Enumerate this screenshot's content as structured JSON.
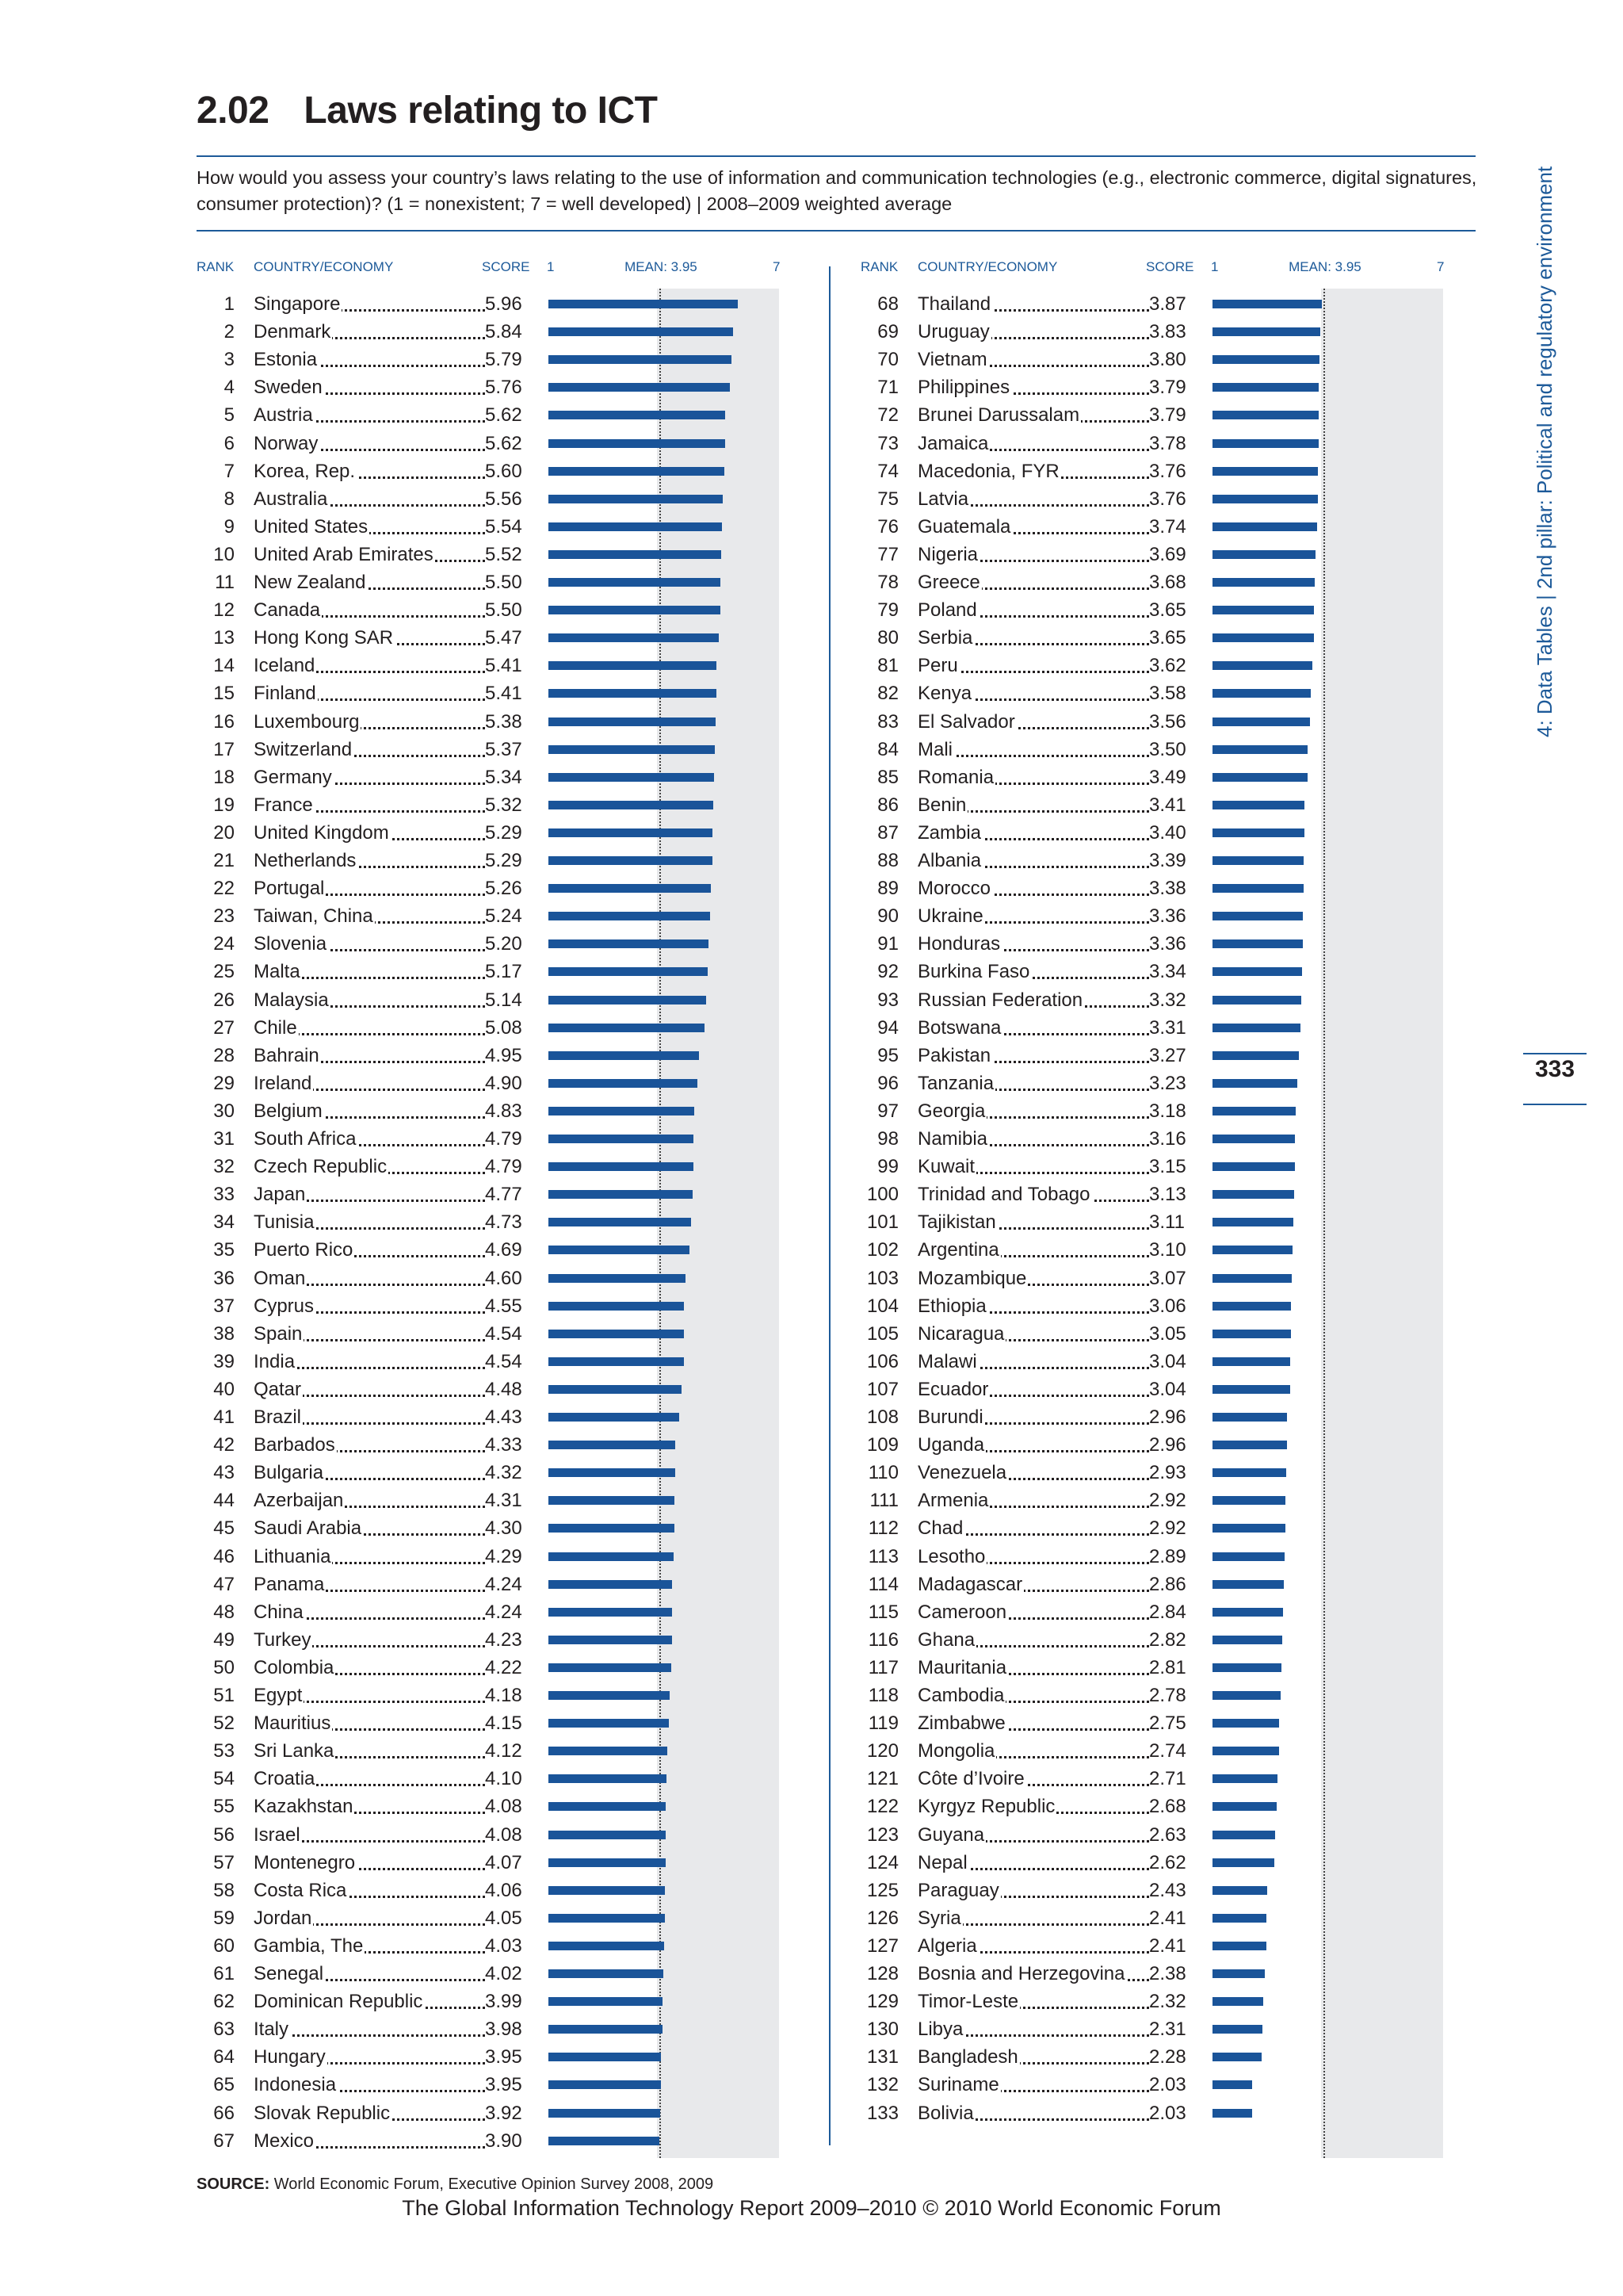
{
  "header": {
    "number": "2.02",
    "title": "Laws relating to ICT",
    "question": "How would you assess your country’s laws relating to the use of information and communication technologies (e.g., electronic commerce, digital signatures, consumer protection)? (1 = nonexistent; 7 = well developed)  |  2008–2009 weighted average"
  },
  "columns": {
    "rank": "RANK",
    "country": "COUNTRY/ECONOMY",
    "score": "SCORE",
    "scale_min": "1",
    "mean_label": "MEAN: 3.95",
    "scale_max": "7"
  },
  "side_text": "4: Data Tables  |  2nd pillar: Political and regulatory environment",
  "page_number": "333",
  "source": {
    "label": "SOURCE:",
    "text": " World Economic Forum, Executive Opinion Survey 2008, 2009"
  },
  "footer": "The Global Information Technology Report 2009–2010 © 2010 World Economic Forum",
  "colors": {
    "accent": "#1d5a99",
    "bar": "#1a5499",
    "panel": "#e8e9eb"
  },
  "chart_data": {
    "type": "bar",
    "orientation": "horizontal",
    "xlim": [
      1,
      7
    ],
    "mean": 3.95,
    "rows": [
      {
        "rank": "1",
        "country": "Singapore",
        "score": "5.96"
      },
      {
        "rank": "2",
        "country": "Denmark",
        "score": "5.84"
      },
      {
        "rank": "3",
        "country": "Estonia",
        "score": "5.79"
      },
      {
        "rank": "4",
        "country": "Sweden",
        "score": "5.76"
      },
      {
        "rank": "5",
        "country": "Austria",
        "score": "5.62"
      },
      {
        "rank": "6",
        "country": "Norway",
        "score": "5.62"
      },
      {
        "rank": "7",
        "country": "Korea, Rep.",
        "score": "5.60"
      },
      {
        "rank": "8",
        "country": "Australia",
        "score": "5.56"
      },
      {
        "rank": "9",
        "country": "United States",
        "score": "5.54"
      },
      {
        "rank": "10",
        "country": "United Arab Emirates",
        "score": "5.52"
      },
      {
        "rank": "11",
        "country": "New Zealand",
        "score": "5.50"
      },
      {
        "rank": "12",
        "country": "Canada",
        "score": "5.50"
      },
      {
        "rank": "13",
        "country": "Hong Kong SAR",
        "score": "5.47"
      },
      {
        "rank": "14",
        "country": "Iceland",
        "score": "5.41"
      },
      {
        "rank": "15",
        "country": "Finland",
        "score": "5.41"
      },
      {
        "rank": "16",
        "country": "Luxembourg",
        "score": "5.38"
      },
      {
        "rank": "17",
        "country": "Switzerland",
        "score": "5.37"
      },
      {
        "rank": "18",
        "country": "Germany",
        "score": "5.34"
      },
      {
        "rank": "19",
        "country": "France",
        "score": "5.32"
      },
      {
        "rank": "20",
        "country": "United Kingdom",
        "score": "5.29"
      },
      {
        "rank": "21",
        "country": "Netherlands",
        "score": "5.29"
      },
      {
        "rank": "22",
        "country": "Portugal",
        "score": "5.26"
      },
      {
        "rank": "23",
        "country": "Taiwan, China",
        "score": "5.24"
      },
      {
        "rank": "24",
        "country": "Slovenia",
        "score": "5.20"
      },
      {
        "rank": "25",
        "country": "Malta",
        "score": "5.17"
      },
      {
        "rank": "26",
        "country": "Malaysia",
        "score": "5.14"
      },
      {
        "rank": "27",
        "country": "Chile",
        "score": "5.08"
      },
      {
        "rank": "28",
        "country": "Bahrain",
        "score": "4.95"
      },
      {
        "rank": "29",
        "country": "Ireland",
        "score": "4.90"
      },
      {
        "rank": "30",
        "country": "Belgium",
        "score": "4.83"
      },
      {
        "rank": "31",
        "country": "South Africa",
        "score": "4.79"
      },
      {
        "rank": "32",
        "country": "Czech Republic",
        "score": "4.79"
      },
      {
        "rank": "33",
        "country": "Japan",
        "score": "4.77"
      },
      {
        "rank": "34",
        "country": "Tunisia",
        "score": "4.73"
      },
      {
        "rank": "35",
        "country": "Puerto Rico",
        "score": "4.69"
      },
      {
        "rank": "36",
        "country": "Oman",
        "score": "4.60"
      },
      {
        "rank": "37",
        "country": "Cyprus",
        "score": "4.55"
      },
      {
        "rank": "38",
        "country": "Spain",
        "score": "4.54"
      },
      {
        "rank": "39",
        "country": "India",
        "score": "4.54"
      },
      {
        "rank": "40",
        "country": "Qatar",
        "score": "4.48"
      },
      {
        "rank": "41",
        "country": "Brazil",
        "score": "4.43"
      },
      {
        "rank": "42",
        "country": "Barbados",
        "score": "4.33"
      },
      {
        "rank": "43",
        "country": "Bulgaria",
        "score": "4.32"
      },
      {
        "rank": "44",
        "country": "Azerbaijan",
        "score": "4.31"
      },
      {
        "rank": "45",
        "country": "Saudi Arabia",
        "score": "4.30"
      },
      {
        "rank": "46",
        "country": "Lithuania",
        "score": "4.29"
      },
      {
        "rank": "47",
        "country": "Panama",
        "score": "4.24"
      },
      {
        "rank": "48",
        "country": "China",
        "score": "4.24"
      },
      {
        "rank": "49",
        "country": "Turkey",
        "score": "4.23"
      },
      {
        "rank": "50",
        "country": "Colombia",
        "score": "4.22"
      },
      {
        "rank": "51",
        "country": "Egypt",
        "score": "4.18"
      },
      {
        "rank": "52",
        "country": "Mauritius",
        "score": "4.15"
      },
      {
        "rank": "53",
        "country": "Sri Lanka",
        "score": "4.12"
      },
      {
        "rank": "54",
        "country": "Croatia",
        "score": "4.10"
      },
      {
        "rank": "55",
        "country": "Kazakhstan",
        "score": "4.08"
      },
      {
        "rank": "56",
        "country": "Israel",
        "score": "4.08"
      },
      {
        "rank": "57",
        "country": "Montenegro",
        "score": "4.07"
      },
      {
        "rank": "58",
        "country": "Costa Rica",
        "score": "4.06"
      },
      {
        "rank": "59",
        "country": "Jordan",
        "score": "4.05"
      },
      {
        "rank": "60",
        "country": "Gambia, The",
        "score": "4.03"
      },
      {
        "rank": "61",
        "country": "Senegal",
        "score": "4.02"
      },
      {
        "rank": "62",
        "country": "Dominican Republic",
        "score": "3.99"
      },
      {
        "rank": "63",
        "country": "Italy",
        "score": "3.98"
      },
      {
        "rank": "64",
        "country": "Hungary",
        "score": "3.95"
      },
      {
        "rank": "65",
        "country": "Indonesia",
        "score": "3.95"
      },
      {
        "rank": "66",
        "country": "Slovak Republic",
        "score": "3.92"
      },
      {
        "rank": "67",
        "country": "Mexico",
        "score": "3.90"
      },
      {
        "rank": "68",
        "country": "Thailand",
        "score": "3.87"
      },
      {
        "rank": "69",
        "country": "Uruguay",
        "score": "3.83"
      },
      {
        "rank": "70",
        "country": "Vietnam",
        "score": "3.80"
      },
      {
        "rank": "71",
        "country": "Philippines",
        "score": "3.79"
      },
      {
        "rank": "72",
        "country": "Brunei Darussalam",
        "score": "3.79"
      },
      {
        "rank": "73",
        "country": "Jamaica",
        "score": "3.78"
      },
      {
        "rank": "74",
        "country": "Macedonia, FYR",
        "score": "3.76"
      },
      {
        "rank": "75",
        "country": "Latvia",
        "score": "3.76"
      },
      {
        "rank": "76",
        "country": "Guatemala",
        "score": "3.74"
      },
      {
        "rank": "77",
        "country": "Nigeria",
        "score": "3.69"
      },
      {
        "rank": "78",
        "country": "Greece",
        "score": "3.68"
      },
      {
        "rank": "79",
        "country": "Poland",
        "score": "3.65"
      },
      {
        "rank": "80",
        "country": "Serbia",
        "score": "3.65"
      },
      {
        "rank": "81",
        "country": "Peru",
        "score": "3.62"
      },
      {
        "rank": "82",
        "country": "Kenya",
        "score": "3.58"
      },
      {
        "rank": "83",
        "country": "El Salvador",
        "score": "3.56"
      },
      {
        "rank": "84",
        "country": "Mali",
        "score": "3.50"
      },
      {
        "rank": "85",
        "country": "Romania",
        "score": "3.49"
      },
      {
        "rank": "86",
        "country": "Benin",
        "score": "3.41"
      },
      {
        "rank": "87",
        "country": "Zambia",
        "score": "3.40"
      },
      {
        "rank": "88",
        "country": "Albania",
        "score": "3.39"
      },
      {
        "rank": "89",
        "country": "Morocco",
        "score": "3.38"
      },
      {
        "rank": "90",
        "country": "Ukraine",
        "score": "3.36"
      },
      {
        "rank": "91",
        "country": "Honduras",
        "score": "3.36"
      },
      {
        "rank": "92",
        "country": "Burkina Faso",
        "score": "3.34"
      },
      {
        "rank": "93",
        "country": "Russian Federation",
        "score": "3.32"
      },
      {
        "rank": "94",
        "country": "Botswana",
        "score": "3.31"
      },
      {
        "rank": "95",
        "country": "Pakistan",
        "score": "3.27"
      },
      {
        "rank": "96",
        "country": "Tanzania",
        "score": "3.23"
      },
      {
        "rank": "97",
        "country": "Georgia",
        "score": "3.18"
      },
      {
        "rank": "98",
        "country": "Namibia",
        "score": "3.16"
      },
      {
        "rank": "99",
        "country": "Kuwait",
        "score": "3.15"
      },
      {
        "rank": "100",
        "country": "Trinidad and Tobago",
        "score": "3.13"
      },
      {
        "rank": "101",
        "country": "Tajikistan",
        "score": "3.11"
      },
      {
        "rank": "102",
        "country": "Argentina",
        "score": "3.10"
      },
      {
        "rank": "103",
        "country": "Mozambique",
        "score": "3.07"
      },
      {
        "rank": "104",
        "country": "Ethiopia",
        "score": "3.06"
      },
      {
        "rank": "105",
        "country": "Nicaragua",
        "score": "3.05"
      },
      {
        "rank": "106",
        "country": "Malawi",
        "score": "3.04"
      },
      {
        "rank": "107",
        "country": "Ecuador",
        "score": "3.04"
      },
      {
        "rank": "108",
        "country": "Burundi",
        "score": "2.96"
      },
      {
        "rank": "109",
        "country": "Uganda",
        "score": "2.96"
      },
      {
        "rank": "110",
        "country": "Venezuela",
        "score": "2.93"
      },
      {
        "rank": "111",
        "country": "Armenia",
        "score": "2.92"
      },
      {
        "rank": "112",
        "country": "Chad",
        "score": "2.92"
      },
      {
        "rank": "113",
        "country": "Lesotho",
        "score": "2.89"
      },
      {
        "rank": "114",
        "country": "Madagascar",
        "score": "2.86"
      },
      {
        "rank": "115",
        "country": "Cameroon",
        "score": "2.84"
      },
      {
        "rank": "116",
        "country": "Ghana",
        "score": "2.82"
      },
      {
        "rank": "117",
        "country": "Mauritania",
        "score": "2.81"
      },
      {
        "rank": "118",
        "country": "Cambodia",
        "score": "2.78"
      },
      {
        "rank": "119",
        "country": "Zimbabwe",
        "score": "2.75"
      },
      {
        "rank": "120",
        "country": "Mongolia",
        "score": "2.74"
      },
      {
        "rank": "121",
        "country": "Côte d’Ivoire",
        "score": "2.71"
      },
      {
        "rank": "122",
        "country": "Kyrgyz Republic",
        "score": "2.68"
      },
      {
        "rank": "123",
        "country": "Guyana",
        "score": "2.63"
      },
      {
        "rank": "124",
        "country": "Nepal",
        "score": "2.62"
      },
      {
        "rank": "125",
        "country": "Paraguay",
        "score": "2.43"
      },
      {
        "rank": "126",
        "country": "Syria",
        "score": "2.41"
      },
      {
        "rank": "127",
        "country": "Algeria",
        "score": "2.41"
      },
      {
        "rank": "128",
        "country": "Bosnia and Herzegovina",
        "score": "2.38"
      },
      {
        "rank": "129",
        "country": "Timor-Leste",
        "score": "2.32"
      },
      {
        "rank": "130",
        "country": "Libya",
        "score": "2.31"
      },
      {
        "rank": "131",
        "country": "Bangladesh",
        "score": "2.28"
      },
      {
        "rank": "132",
        "country": "Suriname",
        "score": "2.03"
      },
      {
        "rank": "133",
        "country": "Bolivia",
        "score": "2.03"
      }
    ]
  }
}
